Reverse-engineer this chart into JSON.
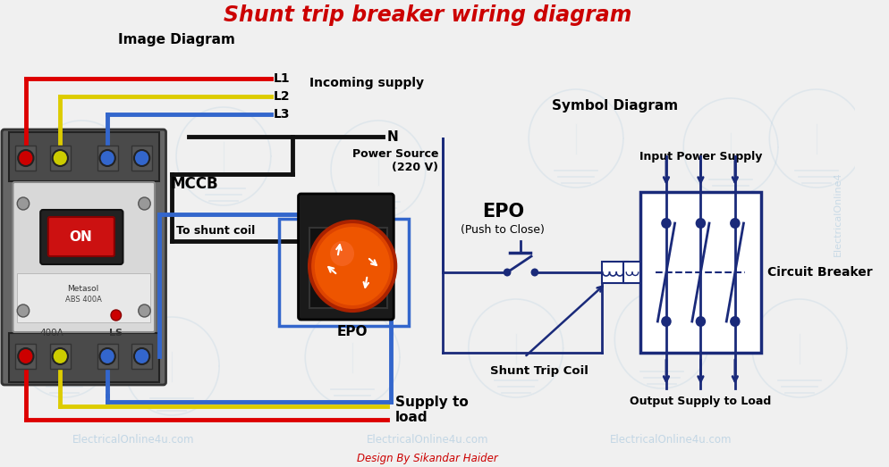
{
  "title": "Shunt trip breaker wiring diagram",
  "bg_color": "#f0f0f0",
  "title_color": "#cc0000",
  "text_color": "#000000",
  "wire_red": "#dd0000",
  "wire_yellow": "#ddcc00",
  "wire_blue": "#3366cc",
  "wire_black": "#111111",
  "sym_color": "#1a2a7a",
  "watermark_color": "#b0cce0",
  "label_image_diagram": "Image Diagram",
  "label_symbol_diagram": "Symbol Diagram",
  "label_mccb": "MCCB",
  "label_epo_image": "EPO",
  "label_L1": "L1",
  "label_L2": "L2",
  "label_L3": "L3",
  "label_N": "N",
  "label_incoming": "Incoming supply",
  "label_to_shunt": "To shunt coil",
  "label_supply_load1": "Supply to",
  "label_supply_load2": "load",
  "label_power_source1": "Power Source",
  "label_power_source2": "(220 V)",
  "label_epo_sym1": "EPO",
  "label_epo_sym2": "(Push to Close)",
  "label_input_power": "Input Power Supply",
  "label_circuit_breaker": "Circuit Breaker",
  "label_shunt_trip_coil": "Shunt Trip Coil",
  "label_output_supply": "Output Supply to Load",
  "label_design": "Design By Sikandar Haider",
  "wm1": "ElectricalOnline4u.com",
  "wm2": "ElectricalOnline4u.com",
  "wm3": "ElectricalOnline4u.com",
  "wm_right": "ElectricalOnline4"
}
